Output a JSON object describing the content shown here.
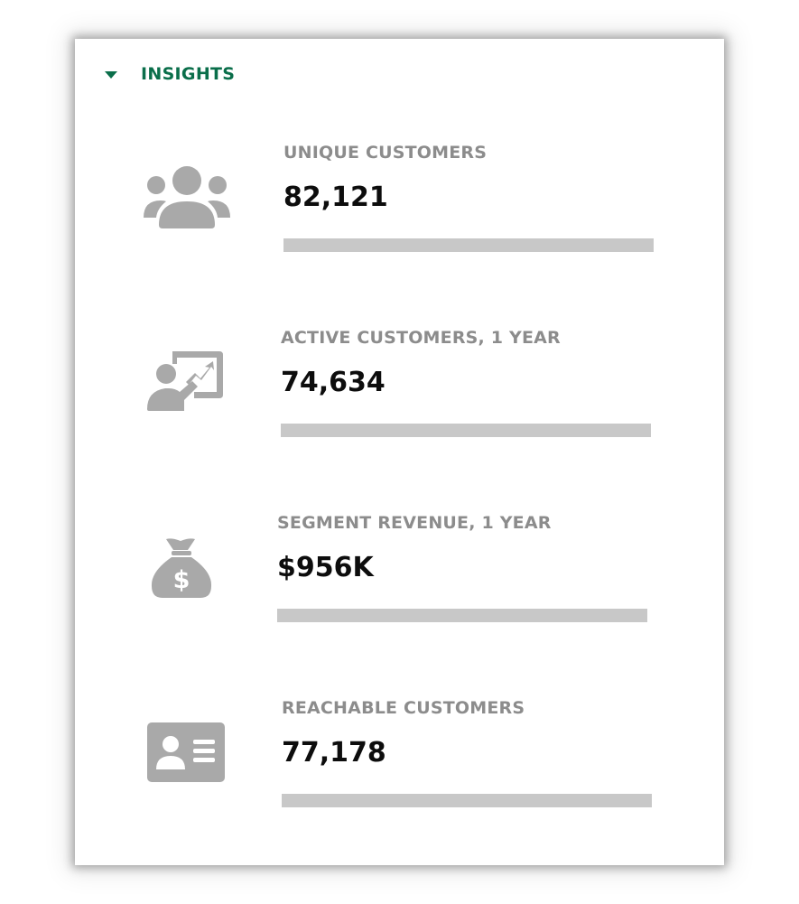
{
  "header": {
    "title": "INSIGHTS",
    "accent_color": "#0a6e4a"
  },
  "stats": [
    {
      "icon": "group-icon",
      "label": "UNIQUE CUSTOMERS",
      "value": "82,121"
    },
    {
      "icon": "presentation-chart-icon",
      "label": "ACTIVE CUSTOMERS, 1 YEAR",
      "value": "74,634"
    },
    {
      "icon": "money-bag-icon",
      "label": "SEGMENT REVENUE, 1 YEAR",
      "value": "$956K"
    },
    {
      "icon": "contact-card-icon",
      "label": "REACHABLE CUSTOMERS",
      "value": "77,178"
    }
  ],
  "colors": {
    "label": "#8c8c8c",
    "value": "#0d0d0d",
    "icon": "#a9a9a9",
    "bar": "#c8c8c8"
  }
}
